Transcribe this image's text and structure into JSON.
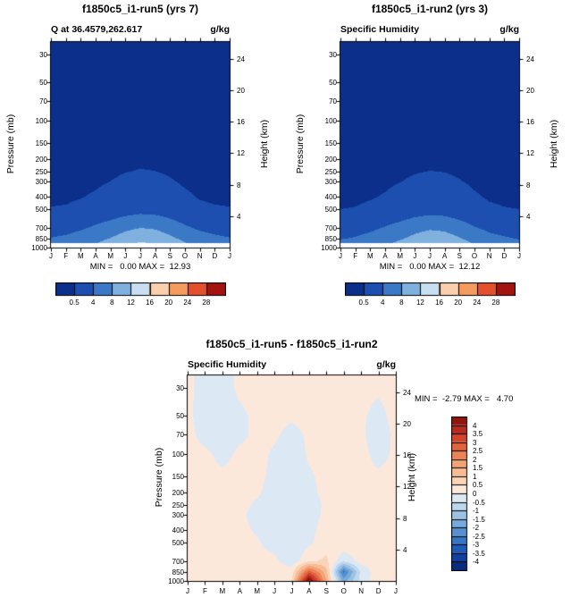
{
  "figure": {
    "months": [
      "J",
      "F",
      "M",
      "A",
      "M",
      "J",
      "J",
      "A",
      "S",
      "O",
      "N",
      "D",
      "J"
    ],
    "pressure_ticks": [
      30,
      50,
      70,
      100,
      150,
      200,
      250,
      300,
      400,
      500,
      700,
      850,
      1000
    ],
    "height_ticks": [
      24,
      20,
      16,
      12,
      8,
      4
    ]
  },
  "chart_data": [
    {
      "id": "run5",
      "type": "filled-contour",
      "title": "f1850c5_i1-run5 (yrs 7)",
      "subtitle": "Q at 36.4579,262.617",
      "units": "g/kg",
      "stats": "MIN =   0.00 MAX =  12.93",
      "ylabel": "Pressure (mb)",
      "y2label": "Height (km)",
      "x_ticklabels": [
        "J",
        "F",
        "M",
        "A",
        "M",
        "J",
        "J",
        "A",
        "S",
        "O",
        "N",
        "D",
        "J"
      ],
      "levels": [
        0.5,
        4,
        8,
        12,
        16,
        20,
        24,
        28
      ],
      "colorbar_labels": [
        "0.5",
        "4",
        "8",
        "12",
        "16",
        "20",
        "24",
        "28"
      ],
      "palette": [
        "#0b2f8a",
        "#1c4fb0",
        "#3b79c6",
        "#7fb0de",
        "#c8def1",
        "#f9cfae",
        "#f59b5d",
        "#e2502d",
        "#a31310"
      ],
      "surface_clip": 930,
      "pressure_levels": [
        30,
        50,
        70,
        100,
        150,
        200,
        250,
        300,
        400,
        500,
        700,
        850,
        1000
      ],
      "values": [
        [
          0.01,
          0.01,
          0.01,
          0.01,
          0.01,
          0.01,
          0.01,
          0.01,
          0.01,
          0.01,
          0.01,
          0.01,
          0.01
        ],
        [
          0.01,
          0.01,
          0.01,
          0.01,
          0.01,
          0.01,
          0.01,
          0.01,
          0.01,
          0.01,
          0.01,
          0.01,
          0.01
        ],
        [
          0.01,
          0.01,
          0.01,
          0.01,
          0.02,
          0.02,
          0.02,
          0.02,
          0.02,
          0.01,
          0.01,
          0.01,
          0.01
        ],
        [
          0.02,
          0.02,
          0.02,
          0.02,
          0.02,
          0.03,
          0.03,
          0.03,
          0.02,
          0.02,
          0.02,
          0.02,
          0.02
        ],
        [
          0.02,
          0.02,
          0.03,
          0.04,
          0.05,
          0.07,
          0.08,
          0.07,
          0.05,
          0.04,
          0.03,
          0.02,
          0.02
        ],
        [
          0.03,
          0.03,
          0.05,
          0.08,
          0.14,
          0.22,
          0.3,
          0.27,
          0.18,
          0.09,
          0.05,
          0.03,
          0.03
        ],
        [
          0.06,
          0.07,
          0.1,
          0.16,
          0.28,
          0.45,
          0.55,
          0.5,
          0.35,
          0.18,
          0.09,
          0.07,
          0.06
        ],
        [
          0.12,
          0.14,
          0.2,
          0.3,
          0.5,
          0.75,
          0.95,
          0.85,
          0.6,
          0.33,
          0.18,
          0.14,
          0.12
        ],
        [
          0.3,
          0.33,
          0.45,
          0.65,
          1.0,
          1.4,
          1.7,
          1.55,
          1.15,
          0.7,
          0.42,
          0.33,
          0.3
        ],
        [
          0.55,
          0.6,
          0.8,
          1.1,
          1.6,
          2.2,
          2.6,
          2.4,
          1.8,
          1.1,
          0.75,
          0.6,
          0.55
        ],
        [
          2.6,
          2.9,
          3.5,
          4.5,
          5.6,
          7.0,
          7.9,
          7.5,
          6.1,
          4.5,
          3.4,
          2.9,
          2.6
        ],
        [
          4.1,
          4.5,
          5.4,
          6.6,
          8.1,
          9.7,
          11.0,
          10.4,
          8.8,
          7.0,
          5.4,
          4.6,
          4.1
        ],
        [
          5.8,
          6.3,
          7.4,
          8.9,
          10.6,
          12.4,
          13.4,
          12.9,
          11.3,
          9.2,
          7.3,
          6.3,
          5.8
        ]
      ]
    },
    {
      "id": "run2",
      "type": "filled-contour",
      "title": "f1850c5_i1-run2 (yrs 3)",
      "subtitle": "Specific Humidity",
      "units": "g/kg",
      "stats": "MIN =   0.00 MAX =  12.12",
      "ylabel": "Pressure (mb)",
      "y2label": "Height (km)",
      "x_ticklabels": [
        "J",
        "F",
        "M",
        "A",
        "M",
        "J",
        "J",
        "A",
        "S",
        "O",
        "N",
        "D",
        "J"
      ],
      "levels": [
        0.5,
        4,
        8,
        12,
        16,
        20,
        24,
        28
      ],
      "colorbar_labels": [
        "0.5",
        "4",
        "8",
        "12",
        "16",
        "20",
        "24",
        "28"
      ],
      "palette": [
        "#0b2f8a",
        "#1c4fb0",
        "#3b79c6",
        "#7fb0de",
        "#c8def1",
        "#f9cfae",
        "#f59b5d",
        "#e2502d",
        "#a31310"
      ],
      "surface_clip": 930,
      "pressure_levels": [
        30,
        50,
        70,
        100,
        150,
        200,
        250,
        300,
        400,
        500,
        700,
        850,
        1000
      ],
      "values": [
        [
          0.01,
          0.01,
          0.01,
          0.01,
          0.01,
          0.01,
          0.01,
          0.01,
          0.01,
          0.01,
          0.01,
          0.01,
          0.01
        ],
        [
          0.01,
          0.01,
          0.01,
          0.01,
          0.01,
          0.01,
          0.01,
          0.01,
          0.01,
          0.01,
          0.01,
          0.01,
          0.01
        ],
        [
          0.01,
          0.01,
          0.01,
          0.01,
          0.02,
          0.02,
          0.02,
          0.02,
          0.02,
          0.01,
          0.01,
          0.01,
          0.01
        ],
        [
          0.02,
          0.02,
          0.02,
          0.02,
          0.02,
          0.03,
          0.03,
          0.03,
          0.02,
          0.02,
          0.02,
          0.02,
          0.02
        ],
        [
          0.02,
          0.02,
          0.03,
          0.04,
          0.05,
          0.06,
          0.07,
          0.07,
          0.05,
          0.04,
          0.03,
          0.02,
          0.02
        ],
        [
          0.03,
          0.03,
          0.04,
          0.07,
          0.12,
          0.2,
          0.27,
          0.24,
          0.16,
          0.08,
          0.04,
          0.03,
          0.03
        ],
        [
          0.05,
          0.06,
          0.09,
          0.14,
          0.25,
          0.41,
          0.51,
          0.46,
          0.31,
          0.16,
          0.08,
          0.06,
          0.05
        ],
        [
          0.11,
          0.13,
          0.18,
          0.27,
          0.46,
          0.7,
          0.88,
          0.79,
          0.55,
          0.3,
          0.16,
          0.13,
          0.11
        ],
        [
          0.28,
          0.3,
          0.41,
          0.6,
          0.93,
          1.3,
          1.58,
          1.44,
          1.06,
          0.64,
          0.38,
          0.3,
          0.28
        ],
        [
          0.5,
          0.55,
          0.74,
          1.02,
          1.49,
          2.05,
          2.42,
          2.23,
          1.67,
          1.02,
          0.69,
          0.55,
          0.5
        ],
        [
          2.4,
          2.7,
          3.25,
          4.2,
          5.2,
          6.5,
          7.35,
          7.0,
          5.65,
          4.2,
          3.15,
          2.7,
          2.4
        ],
        [
          3.8,
          4.2,
          5.0,
          6.1,
          7.5,
          9.0,
          10.2,
          9.7,
          8.2,
          6.5,
          5.0,
          4.3,
          3.8
        ],
        [
          5.4,
          5.9,
          6.9,
          8.3,
          9.9,
          11.6,
          12.5,
          12.1,
          10.6,
          8.6,
          6.8,
          5.9,
          5.4
        ]
      ]
    },
    {
      "id": "diff",
      "type": "filled-contour",
      "title": "f1850c5_i1-run5 - f1850c5_i1-run2",
      "subtitle": "Specific Humidity",
      "units": "g/kg",
      "stats": "MIN =  -2.79 MAX =   4.70",
      "ylabel": "Pressure (mb)",
      "y2label": "Height (km)",
      "x_ticklabels": [
        "J",
        "F",
        "M",
        "A",
        "M",
        "J",
        "J",
        "A",
        "S",
        "O",
        "N",
        "D",
        "J"
      ],
      "levels": [
        -4,
        -3.5,
        -3,
        -2.5,
        -2,
        -1.5,
        -1,
        -0.5,
        0,
        0.5,
        1,
        1.5,
        2,
        2.5,
        3,
        3.5,
        4
      ],
      "colorbar_labels": [
        "4",
        "3.5",
        "3",
        "2.5",
        "2",
        "1.5",
        "1",
        "0.5",
        "0",
        "-0.5",
        "-1",
        "-1.5",
        "-2",
        "-2.5",
        "-3",
        "-3.5",
        "-4"
      ],
      "palette": [
        "#0a2c7e",
        "#1241a0",
        "#1f5bb5",
        "#3676c4",
        "#5590cf",
        "#78aad9",
        "#9cc2e3",
        "#bed7ed",
        "#dce9f5",
        "#fce8da",
        "#fad4b8",
        "#f7bc96",
        "#f2a276",
        "#ec8357",
        "#e2643e",
        "#d4432c",
        "#b92b20",
        "#8f1710"
      ],
      "surface_clip": null,
      "pressure_levels": [
        30,
        50,
        70,
        100,
        150,
        200,
        250,
        300,
        400,
        500,
        700,
        850,
        1000
      ],
      "values": [
        [
          0.1,
          -0.2,
          -0.2,
          0.1,
          0.15,
          0.1,
          0.1,
          0.1,
          0.1,
          0.15,
          0.1,
          0.05,
          0.1
        ],
        [
          0.1,
          -0.25,
          -0.3,
          -0.1,
          0.1,
          0.1,
          0.05,
          0.1,
          0.15,
          0.1,
          0.05,
          -0.1,
          0.1
        ],
        [
          0.15,
          -0.2,
          -0.25,
          -0.1,
          0.1,
          0.05,
          -0.1,
          0.05,
          0.2,
          0.1,
          0.05,
          -0.15,
          0.05
        ],
        [
          0.2,
          0.1,
          -0.15,
          0.1,
          0.1,
          -0.05,
          -0.2,
          0.05,
          0.15,
          0.1,
          0.1,
          -0.1,
          0.05
        ],
        [
          0.2,
          0.15,
          0.1,
          0.15,
          0.1,
          -0.1,
          -0.25,
          -0.05,
          0.1,
          0.15,
          0.1,
          0.05,
          0.1
        ],
        [
          0.15,
          0.2,
          0.15,
          0.1,
          0.05,
          -0.15,
          -0.3,
          -0.1,
          0.1,
          0.2,
          0.15,
          0.1,
          0.15
        ],
        [
          0.1,
          0.15,
          0.2,
          0.1,
          -0.05,
          -0.2,
          -0.35,
          -0.15,
          0.05,
          0.25,
          0.2,
          0.15,
          0.1
        ],
        [
          0.1,
          0.1,
          0.15,
          0.05,
          -0.1,
          -0.25,
          -0.4,
          -0.2,
          0.1,
          0.3,
          0.25,
          0.2,
          0.1
        ],
        [
          0.15,
          0.1,
          0.1,
          0.1,
          -0.05,
          -0.3,
          -0.45,
          -0.15,
          0.2,
          0.35,
          0.3,
          0.2,
          0.15
        ],
        [
          0.2,
          0.15,
          0.1,
          0.15,
          0.05,
          -0.2,
          -0.45,
          -0.1,
          0.3,
          0.4,
          0.3,
          0.25,
          0.2
        ],
        [
          0.25,
          0.2,
          0.15,
          0.2,
          0.15,
          0.1,
          -0.3,
          0.4,
          0.6,
          -0.4,
          0.2,
          0.3,
          0.25
        ],
        [
          0.3,
          0.25,
          0.2,
          0.25,
          0.3,
          0.3,
          0.2,
          2.8,
          1.2,
          -2.7,
          -0.4,
          0.3,
          0.3
        ],
        [
          0.35,
          0.3,
          0.25,
          0.3,
          0.35,
          0.4,
          0.5,
          4.7,
          1.5,
          -1.8,
          -0.3,
          0.3,
          0.35
        ]
      ]
    }
  ]
}
